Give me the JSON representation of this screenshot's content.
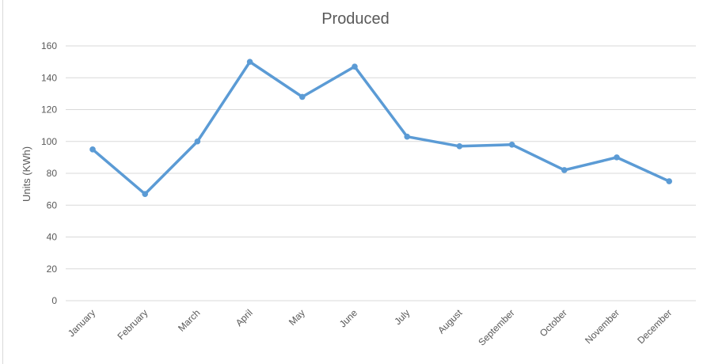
{
  "chart_data": {
    "type": "line",
    "title": "Produced",
    "xlabel": "",
    "ylabel": "Units (KWh)",
    "categories": [
      "January",
      "February",
      "March",
      "April",
      "May",
      "June",
      "July",
      "August",
      "September",
      "October",
      "November",
      "December"
    ],
    "series": [
      {
        "values": [
          95,
          67,
          100,
          150,
          128,
          147,
          103,
          97,
          98,
          82,
          90,
          75
        ]
      }
    ],
    "ylim": [
      0,
      160
    ],
    "yticks": [
      0,
      20,
      40,
      60,
      80,
      100,
      120,
      140,
      160
    ],
    "grid": true,
    "legend": "none",
    "line_color": "#5b9bd5"
  }
}
